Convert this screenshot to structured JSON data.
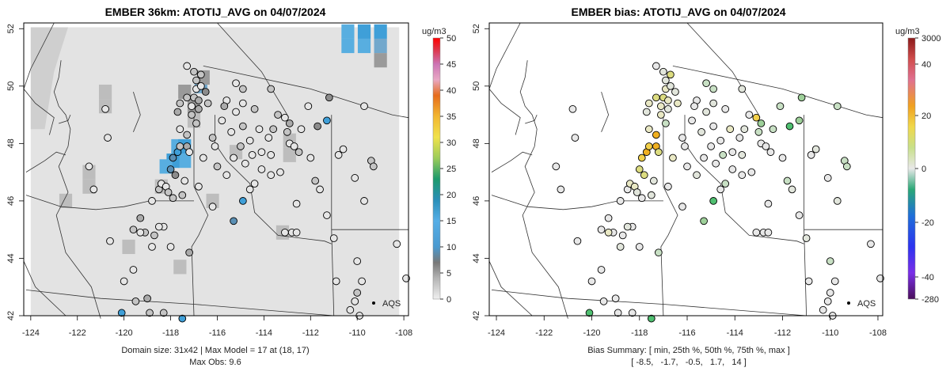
{
  "chart_data": [
    {
      "type": "heatmap",
      "title": "EMBER 36km: ATOTIJ_AVG on 04/07/2024",
      "x_ticks": [
        "-124",
        "-122",
        "-120",
        "-118",
        "-116",
        "-114",
        "-112",
        "-110",
        "-108"
      ],
      "y_ticks": [
        "42",
        "44",
        "46",
        "48",
        "50",
        "52"
      ],
      "xlim": [
        -124.3,
        -107.8
      ],
      "ylim": [
        42,
        52.2
      ],
      "colorbar": {
        "label": "ug/m3",
        "ticks": [
          "0",
          "5",
          "10",
          "15",
          "20",
          "25",
          "30",
          "35",
          "40",
          "45",
          "50"
        ],
        "range": [
          0,
          50
        ]
      },
      "footer_lines": [
        "Domain size: 31x42 | Max Model = 17 at (18, 17)",
        "Max Obs: 9.6"
      ],
      "legend_label": "AQS",
      "field_base_value": 1,
      "model_cells": [
        {
          "lon": -110.4,
          "lat": 51.9,
          "value": 12
        },
        {
          "lon": -109.7,
          "lat": 51.9,
          "value": 14
        },
        {
          "lon": -109.0,
          "lat": 51.9,
          "value": 13
        },
        {
          "lon": -110.4,
          "lat": 51.4,
          "value": 10
        },
        {
          "lon": -109.7,
          "lat": 51.4,
          "value": 12
        },
        {
          "lon": -109.0,
          "lat": 51.4,
          "value": 9
        },
        {
          "lon": -109.0,
          "lat": 50.9,
          "value": 6
        },
        {
          "lon": -117.7,
          "lat": 47.9,
          "value": 12
        },
        {
          "lon": -117.4,
          "lat": 47.4,
          "value": 10
        },
        {
          "lon": -117.9,
          "lat": 47.4,
          "value": 14
        },
        {
          "lon": -118.2,
          "lat": 47.2,
          "value": 11
        },
        {
          "lon": -117.4,
          "lat": 47.9,
          "value": 17
        },
        {
          "lon": -116.7,
          "lat": 50.0,
          "value": 8
        },
        {
          "lon": -116.6,
          "lat": 50.3,
          "value": 6
        },
        {
          "lon": -121.5,
          "lat": 47.0,
          "value": 3
        },
        {
          "lon": -121.5,
          "lat": 46.5,
          "value": 3
        },
        {
          "lon": -122.5,
          "lat": 46.0,
          "value": 3
        },
        {
          "lon": -120.8,
          "lat": 49.8,
          "value": 3
        },
        {
          "lon": -120.8,
          "lat": 49.3,
          "value": 3
        },
        {
          "lon": -117.0,
          "lat": 49.3,
          "value": 5
        },
        {
          "lon": -117.4,
          "lat": 49.8,
          "value": 6
        },
        {
          "lon": -117.0,
          "lat": 48.8,
          "value": 4
        },
        {
          "lon": -112.9,
          "lat": 48.1,
          "value": 4
        },
        {
          "lon": -112.9,
          "lat": 47.6,
          "value": 4
        },
        {
          "lon": -113.2,
          "lat": 44.9,
          "value": 4
        },
        {
          "lon": -118.4,
          "lat": 46.5,
          "value": 4
        },
        {
          "lon": -117.6,
          "lat": 43.7,
          "value": 3
        },
        {
          "lon": -119.8,
          "lat": 44.4,
          "value": 3
        },
        {
          "lon": -116.2,
          "lat": 46.0,
          "value": 3
        },
        {
          "lon": -115.2,
          "lat": 47.7,
          "value": 3
        }
      ],
      "sites": [
        {
          "lon": -120.1,
          "lat": 42.1,
          "obs": 9
        },
        {
          "lon": -117.5,
          "lat": 41.9,
          "obs": 9.6
        },
        {
          "lon": -118.9,
          "lat": 42.1,
          "obs": 2
        },
        {
          "lon": -119.0,
          "lat": 42.6,
          "obs": 3
        },
        {
          "lon": -118.3,
          "lat": 42.1,
          "obs": 2
        },
        {
          "lon": -119.5,
          "lat": 42.5,
          "obs": 2
        },
        {
          "lon": -120.0,
          "lat": 43.2,
          "obs": 1
        },
        {
          "lon": -119.6,
          "lat": 43.6,
          "obs": 1
        },
        {
          "lon": -120.6,
          "lat": 44.6,
          "obs": 1
        },
        {
          "lon": -119.1,
          "lat": 44.9,
          "obs": 2
        },
        {
          "lon": -118.7,
          "lat": 44.8,
          "obs": 2
        },
        {
          "lon": -118.0,
          "lat": 44.4,
          "obs": 1
        },
        {
          "lon": -118.8,
          "lat": 44.4,
          "obs": 1
        },
        {
          "lon": -117.2,
          "lat": 44.2,
          "obs": 3
        },
        {
          "lon": -118.3,
          "lat": 45.1,
          "obs": 1
        },
        {
          "lon": -118.5,
          "lat": 45.1,
          "obs": 1
        },
        {
          "lon": -119.6,
          "lat": 45.0,
          "obs": 2
        },
        {
          "lon": -119.3,
          "lat": 44.9,
          "obs": 1
        },
        {
          "lon": -119.3,
          "lat": 45.4,
          "obs": 3
        },
        {
          "lon": -118.8,
          "lat": 46.0,
          "obs": 1
        },
        {
          "lon": -118.5,
          "lat": 46.4,
          "obs": 2
        },
        {
          "lon": -118.4,
          "lat": 46.6,
          "obs": 1
        },
        {
          "lon": -118.2,
          "lat": 46.5,
          "obs": 1
        },
        {
          "lon": -118.1,
          "lat": 46.3,
          "obs": 2
        },
        {
          "lon": -117.9,
          "lat": 46.1,
          "obs": 2
        },
        {
          "lon": -117.5,
          "lat": 46.2,
          "obs": 2
        },
        {
          "lon": -117.4,
          "lat": 46.7,
          "obs": 1
        },
        {
          "lon": -117.8,
          "lat": 46.9,
          "obs": 4
        },
        {
          "lon": -118.0,
          "lat": 47.1,
          "obs": 8
        },
        {
          "lon": -117.9,
          "lat": 47.5,
          "obs": 7
        },
        {
          "lon": -117.7,
          "lat": 47.7,
          "obs": 9
        },
        {
          "lon": -117.3,
          "lat": 47.9,
          "obs": 3
        },
        {
          "lon": -117.6,
          "lat": 47.9,
          "obs": 2
        },
        {
          "lon": -117.2,
          "lat": 47.7,
          "obs": 1
        },
        {
          "lon": -117.3,
          "lat": 48.3,
          "obs": 2
        },
        {
          "lon": -117.6,
          "lat": 48.5,
          "obs": 1
        },
        {
          "lon": -116.9,
          "lat": 48.7,
          "obs": 2
        },
        {
          "lon": -117.7,
          "lat": 49.1,
          "obs": 3
        },
        {
          "lon": -117.6,
          "lat": 49.4,
          "obs": 2
        },
        {
          "lon": -117.3,
          "lat": 49.6,
          "obs": 2
        },
        {
          "lon": -117.1,
          "lat": 49.3,
          "obs": 1
        },
        {
          "lon": -117.0,
          "lat": 49.6,
          "obs": 2
        },
        {
          "lon": -116.9,
          "lat": 49.9,
          "obs": 1
        },
        {
          "lon": -116.7,
          "lat": 50.4,
          "obs": 2
        },
        {
          "lon": -117.3,
          "lat": 50.7,
          "obs": 1
        },
        {
          "lon": -117.0,
          "lat": 50.5,
          "obs": 2
        },
        {
          "lon": -116.7,
          "lat": 50.0,
          "obs": 1
        },
        {
          "lon": -117.1,
          "lat": 49.0,
          "obs": 2
        },
        {
          "lon": -116.8,
          "lat": 49.5,
          "obs": 3
        },
        {
          "lon": -116.5,
          "lat": 49.8,
          "obs": 4
        },
        {
          "lon": -116.4,
          "lat": 49.4,
          "obs": 2
        },
        {
          "lon": -116.8,
          "lat": 49.2,
          "obs": 3
        },
        {
          "lon": -116.9,
          "lat": 50.2,
          "obs": 2
        },
        {
          "lon": -115.2,
          "lat": 50.1,
          "obs": 1
        },
        {
          "lon": -114.9,
          "lat": 49.9,
          "obs": 2
        },
        {
          "lon": -115.6,
          "lat": 49.5,
          "obs": 1
        },
        {
          "lon": -114.9,
          "lat": 49.4,
          "obs": 1
        },
        {
          "lon": -114.4,
          "lat": 49.2,
          "obs": 2
        },
        {
          "lon": -115.7,
          "lat": 49.3,
          "obs": 3
        },
        {
          "lon": -115.8,
          "lat": 48.8,
          "obs": 1
        },
        {
          "lon": -115.2,
          "lat": 49.1,
          "obs": 1
        },
        {
          "lon": -114.9,
          "lat": 48.6,
          "obs": 2
        },
        {
          "lon": -114.2,
          "lat": 48.5,
          "obs": 1
        },
        {
          "lon": -113.6,
          "lat": 48.5,
          "obs": 2
        },
        {
          "lon": -113.1,
          "lat": 48.9,
          "obs": 1
        },
        {
          "lon": -113.0,
          "lat": 48.4,
          "obs": 2
        },
        {
          "lon": -112.9,
          "lat": 48.7,
          "obs": 3
        },
        {
          "lon": -113.4,
          "lat": 49.0,
          "obs": 2
        },
        {
          "lon": -113.7,
          "lat": 49.9,
          "obs": 2
        },
        {
          "lon": -112.4,
          "lat": 48.5,
          "obs": 1
        },
        {
          "lon": -112.1,
          "lat": 49.3,
          "obs": 1
        },
        {
          "lon": -111.2,
          "lat": 49.6,
          "obs": 5
        },
        {
          "lon": -111.3,
          "lat": 48.8,
          "obs": 9
        },
        {
          "lon": -111.7,
          "lat": 48.6,
          "obs": 5
        },
        {
          "lon": -109.7,
          "lat": 49.3,
          "obs": 1
        },
        {
          "lon": -112.9,
          "lat": 48.0,
          "obs": 1
        },
        {
          "lon": -112.7,
          "lat": 47.9,
          "obs": 1
        },
        {
          "lon": -112.5,
          "lat": 47.7,
          "obs": 2
        },
        {
          "lon": -113.7,
          "lat": 47.6,
          "obs": 1
        },
        {
          "lon": -114.1,
          "lat": 47.7,
          "obs": 1
        },
        {
          "lon": -114.5,
          "lat": 47.6,
          "obs": 1
        },
        {
          "lon": -115.0,
          "lat": 47.9,
          "obs": 2
        },
        {
          "lon": -115.3,
          "lat": 47.5,
          "obs": 1
        },
        {
          "lon": -116.1,
          "lat": 47.9,
          "obs": 1
        },
        {
          "lon": -116.6,
          "lat": 47.5,
          "obs": 1
        },
        {
          "lon": -116.0,
          "lat": 47.2,
          "obs": 2
        },
        {
          "lon": -115.6,
          "lat": 46.9,
          "obs": 1
        },
        {
          "lon": -114.8,
          "lat": 47.3,
          "obs": 1
        },
        {
          "lon": -114.1,
          "lat": 47.1,
          "obs": 1
        },
        {
          "lon": -113.7,
          "lat": 46.9,
          "obs": 1
        },
        {
          "lon": -114.4,
          "lat": 46.6,
          "obs": 1
        },
        {
          "lon": -114.9,
          "lat": 46.0,
          "obs": 9
        },
        {
          "lon": -115.3,
          "lat": 45.3,
          "obs": 6
        },
        {
          "lon": -112.0,
          "lat": 47.5,
          "obs": 1
        },
        {
          "lon": -111.8,
          "lat": 46.7,
          "obs": 2
        },
        {
          "lon": -111.6,
          "lat": 46.4,
          "obs": 1
        },
        {
          "lon": -110.8,
          "lat": 47.6,
          "obs": 1
        },
        {
          "lon": -110.6,
          "lat": 47.8,
          "obs": 1
        },
        {
          "lon": -109.4,
          "lat": 47.4,
          "obs": 2
        },
        {
          "lon": -109.3,
          "lat": 47.2,
          "obs": 2
        },
        {
          "lon": -110.1,
          "lat": 46.8,
          "obs": 1
        },
        {
          "lon": -109.7,
          "lat": 46.0,
          "obs": 1
        },
        {
          "lon": -112.6,
          "lat": 45.9,
          "obs": 1
        },
        {
          "lon": -112.8,
          "lat": 44.9,
          "obs": 1
        },
        {
          "lon": -112.6,
          "lat": 44.9,
          "obs": 1
        },
        {
          "lon": -113.1,
          "lat": 44.9,
          "obs": 1
        },
        {
          "lon": -111.0,
          "lat": 44.7,
          "obs": 1
        },
        {
          "lon": -111.3,
          "lat": 45.5,
          "obs": 1
        },
        {
          "lon": -110.0,
          "lat": 43.9,
          "obs": 1
        },
        {
          "lon": -110.9,
          "lat": 43.2,
          "obs": 1
        },
        {
          "lon": -109.8,
          "lat": 43.2,
          "obs": 1
        },
        {
          "lon": -108.3,
          "lat": 44.5,
          "obs": 1
        },
        {
          "lon": -107.9,
          "lat": 43.3,
          "obs": 1
        },
        {
          "lon": -110.0,
          "lat": 42.8,
          "obs": 2
        },
        {
          "lon": -110.1,
          "lat": 42.5,
          "obs": 1
        },
        {
          "lon": -110.3,
          "lat": 42.2,
          "obs": 1
        },
        {
          "lon": -109.9,
          "lat": 42.0,
          "obs": 1
        },
        {
          "lon": -116.8,
          "lat": 46.5,
          "obs": 1
        },
        {
          "lon": -116.2,
          "lat": 45.8,
          "obs": 1
        },
        {
          "lon": -114.6,
          "lat": 46.4,
          "obs": 1
        },
        {
          "lon": -113.3,
          "lat": 47.0,
          "obs": 1
        },
        {
          "lon": -116.2,
          "lat": 48.2,
          "obs": 2
        },
        {
          "lon": -115.4,
          "lat": 48.4,
          "obs": 1
        },
        {
          "lon": -114.6,
          "lat": 48.1,
          "obs": 1
        },
        {
          "lon": -113.8,
          "lat": 48.2,
          "obs": 1
        },
        {
          "lon": -121.3,
          "lat": 46.4,
          "obs": 1
        },
        {
          "lon": -121.5,
          "lat": 47.2,
          "obs": 1
        },
        {
          "lon": -120.8,
          "lat": 49.2,
          "obs": 1
        },
        {
          "lon": -120.7,
          "lat": 48.2,
          "obs": 1
        }
      ]
    },
    {
      "type": "heatmap",
      "title": "EMBER bias: ATOTIJ_AVG on 04/07/2024",
      "x_ticks": [
        "-124",
        "-122",
        "-120",
        "-118",
        "-116",
        "-114",
        "-112",
        "-110",
        "-108"
      ],
      "y_ticks": [
        "42",
        "44",
        "46",
        "48",
        "50",
        "52"
      ],
      "xlim": [
        -124.3,
        -107.8
      ],
      "ylim": [
        42,
        52.2
      ],
      "colorbar": {
        "label": "ug/m3",
        "ticks": [
          "3000",
          "40",
          "20",
          "0",
          "-20",
          "-40",
          "-280"
        ]
      },
      "footer_lines": [
        "Bias Summary: [ min, 25th %, 50th %, 75th %, max ]",
        "[ -8.5,   -1.7,   -0.5,   1.7,   14 ]"
      ],
      "bias_summary": {
        "min": -8.5,
        "p25": -1.7,
        "p50": -0.5,
        "p75": 1.7,
        "max": 14
      },
      "legend_label": "AQS",
      "bias_values": [
        -8,
        -8.5,
        0,
        -1,
        0,
        -1,
        -1,
        0,
        -1,
        -1,
        0,
        -1,
        1,
        -2,
        -1,
        1,
        0,
        3,
        -1,
        0,
        0,
        4,
        4,
        1,
        -1,
        1,
        2,
        7,
        8,
        10,
        12,
        14,
        10,
        6,
        12,
        4,
        -2,
        1,
        3,
        7,
        4,
        6,
        3,
        7,
        -1,
        2,
        1,
        3,
        5,
        2,
        4,
        1,
        2,
        -2,
        -3,
        0,
        1,
        -1,
        0,
        0,
        2,
        -1,
        3,
        1,
        9,
        -2,
        -4,
        0,
        1,
        -3,
        -2,
        -4,
        -5,
        -6,
        -3,
        0,
        -1,
        -1,
        2,
        -1,
        -2,
        -1,
        0,
        0,
        3,
        -1,
        2,
        0,
        -1,
        0,
        -3,
        -7,
        -5,
        0,
        -2,
        1,
        -1,
        2,
        -3,
        -2,
        0,
        1,
        -1,
        0,
        0,
        0,
        1,
        -1,
        -2,
        -1,
        0,
        -1,
        0,
        0,
        -1,
        0,
        0,
        0,
        0,
        0,
        0,
        -1,
        1,
        0,
        0,
        0,
        0,
        -1,
        0
      ]
    }
  ]
}
